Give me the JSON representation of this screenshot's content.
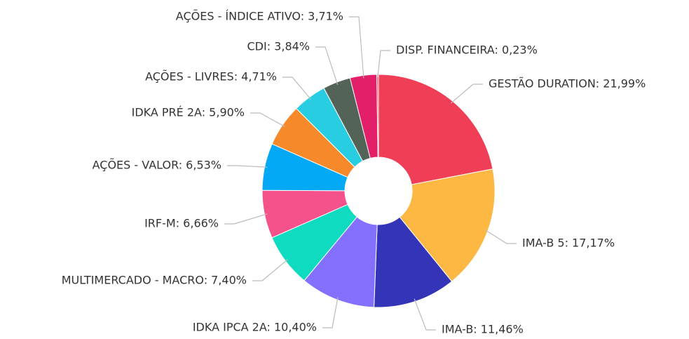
{
  "chart_data": {
    "type": "pie",
    "labels": [
      "GESTÃO DURATION: 21,99%",
      "IMA-B 5: 17,17%",
      "IMA-B: 11,46%",
      "IDKA IPCA 2A: 10,40%",
      "MULTIMERCADO - MACRO: 7,40%",
      "IRF-M: 6,66%",
      "AÇÕES - VALOR: 6,53%",
      "IDKA PRÉ 2A: 5,90%",
      "AÇÕES - LIVRES: 4,71%",
      "CDI: 3,84%",
      "AÇÕES - ÍNDICE ATIVO: 3,71%",
      "DISP. FINANCEIRA: 0,23%"
    ],
    "values": [
      21.99,
      17.17,
      11.46,
      10.4,
      7.4,
      6.66,
      6.53,
      5.9,
      4.71,
      3.84,
      3.71,
      0.23
    ],
    "colors": [
      "#ef3e55",
      "#fdb844",
      "#3434b8",
      "#8470ff",
      "#0fdbc0",
      "#f5528c",
      "#03a9f4",
      "#f6892a",
      "#28cde2",
      "#546357",
      "#e31f6a",
      "#ef3e55"
    ]
  }
}
